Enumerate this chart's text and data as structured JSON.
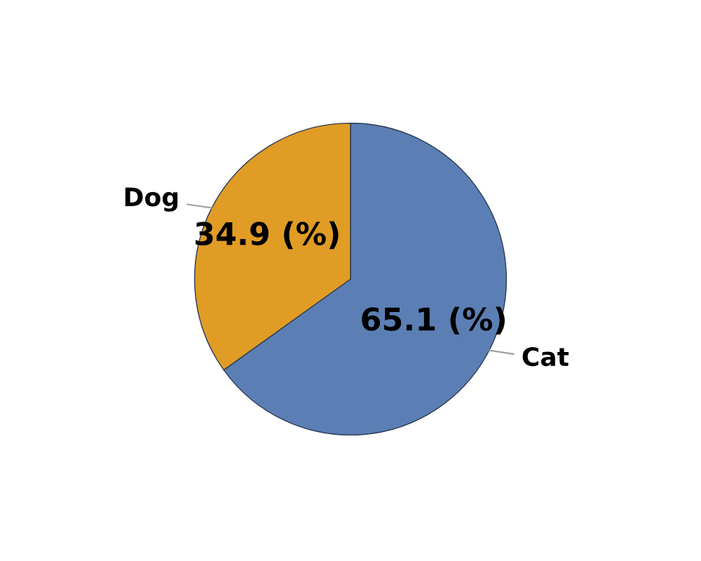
{
  "chart_data": {
    "type": "pie",
    "categories": [
      "Cat",
      "Dog"
    ],
    "values": [
      65.1,
      34.9
    ],
    "colors": [
      "#5b7fb4",
      "#e09c25"
    ],
    "value_labels": [
      "65.1 (%)",
      "34.9 (%)"
    ],
    "legend": false
  }
}
